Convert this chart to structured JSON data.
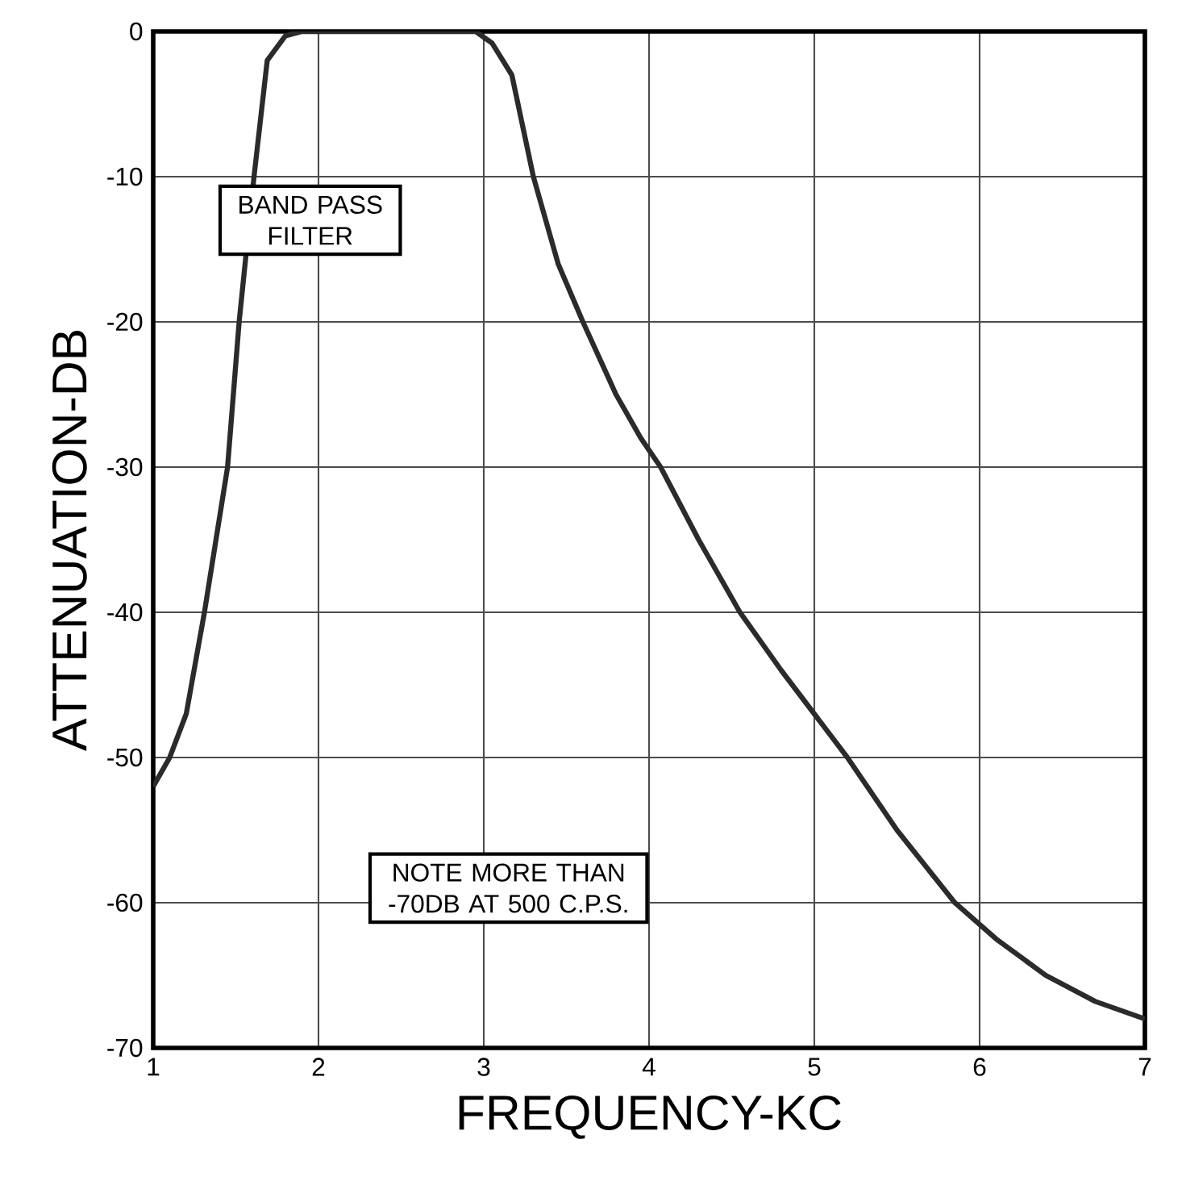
{
  "chart_data": {
    "type": "line",
    "xlabel": "FREQUENCY-KC",
    "ylabel": "ATTENUATION-DB",
    "x": [
      1.0,
      1.1,
      1.2,
      1.31,
      1.45,
      1.52,
      1.61,
      1.69,
      1.8,
      1.9,
      2.5,
      2.95,
      3.05,
      3.17,
      3.3,
      3.45,
      3.6,
      3.8,
      3.95,
      4.07,
      4.3,
      4.55,
      4.8,
      5.0,
      5.2,
      5.5,
      5.85,
      6.1,
      6.4,
      6.7,
      7.0
    ],
    "values": [
      -52,
      -50,
      -47,
      -40,
      -30,
      -20,
      -10,
      -2,
      -0.3,
      0,
      0,
      0,
      -0.8,
      -3,
      -10,
      -16,
      -20,
      -25,
      -28,
      -30,
      -35,
      -40,
      -44,
      -47,
      -50,
      -55,
      -60,
      -62.5,
      -65,
      -66.8,
      -68
    ],
    "color": "#2b2b2b",
    "line_style": "solid",
    "marker": "none",
    "grid": true,
    "xlim": [
      1,
      7
    ],
    "ylim": [
      -70,
      0
    ],
    "xticks": [
      1,
      2,
      3,
      4,
      5,
      6,
      7
    ],
    "yticks": [
      -70,
      -60,
      -50,
      -40,
      -30,
      -20,
      -10,
      0
    ],
    "annotations": [
      "BAND PASS FILTER",
      "NOTE MORE THAN -70DB AT 500 C.P.S."
    ]
  }
}
